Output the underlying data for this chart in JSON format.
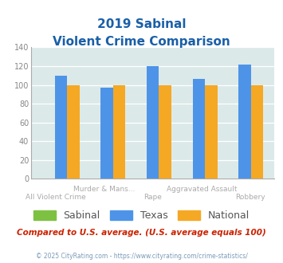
{
  "title_line1": "2019 Sabinal",
  "title_line2": "Violent Crime Comparison",
  "top_labels": [
    "",
    "Murder & Mans...",
    "",
    "Aggravated Assault",
    ""
  ],
  "bottom_labels": [
    "All Violent Crime",
    "",
    "Rape",
    "",
    "Robbery"
  ],
  "sabinal": [
    0,
    0,
    0,
    0,
    0
  ],
  "texas": [
    110,
    97,
    120,
    106,
    122
  ],
  "national": [
    100,
    100,
    100,
    100,
    100
  ],
  "bar_color_sabinal": "#7dc142",
  "bar_color_texas": "#4d94e8",
  "bar_color_national": "#f5a823",
  "ylim": [
    0,
    140
  ],
  "yticks": [
    0,
    20,
    40,
    60,
    80,
    100,
    120,
    140
  ],
  "bg_color": "#dce9e9",
  "title_color": "#1a5fa8",
  "footer_text": "Compared to U.S. average. (U.S. average equals 100)",
  "footer_color": "#cc2200",
  "credit_text": "© 2025 CityRating.com - https://www.cityrating.com/crime-statistics/",
  "credit_color": "#7a9ab8",
  "tick_label_color": "#888888",
  "xlabel_color": "#aaaaaa"
}
